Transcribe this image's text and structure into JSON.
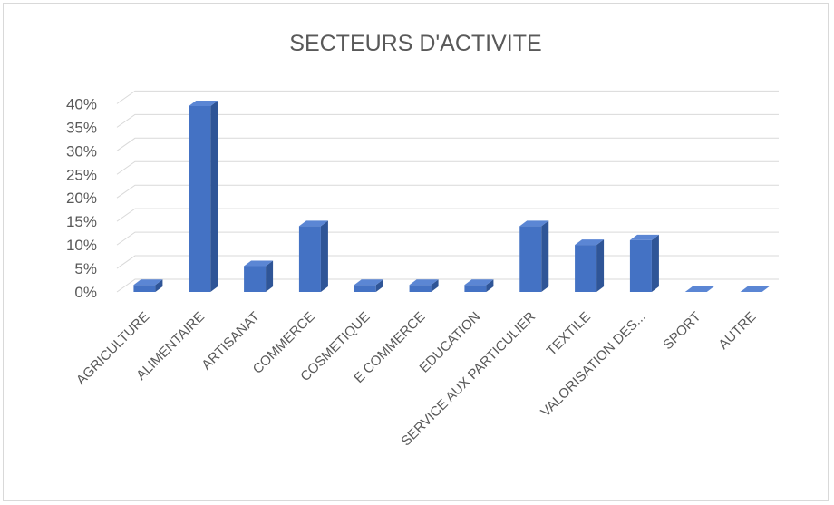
{
  "chart_data": {
    "type": "bar",
    "title": "SECTEURS D'ACTIVITE",
    "categories": [
      "AGRICULTURE",
      "ALIMENTAIRE",
      "ARTISANAT",
      "COMMERCE",
      "COSMETIQUE",
      "E COMMERCE",
      "EDUCATION",
      "SERVICE AUX PARTICULIER",
      "TEXTILE",
      "VALORISATION DES...",
      "SPORT",
      "AUTRE"
    ],
    "values": [
      0.015,
      0.395,
      0.055,
      0.14,
      0.015,
      0.015,
      0.015,
      0.14,
      0.1,
      0.11,
      0.0,
      0.0
    ],
    "ylim": [
      0,
      0.4
    ],
    "yticks": [
      "0%",
      "5%",
      "10%",
      "15%",
      "20%",
      "25%",
      "30%",
      "35%",
      "40%"
    ],
    "grid": true,
    "bar_color": "#4472c4",
    "bar_side_color": "#2f5597",
    "bar_top_color": "#5b86d4"
  }
}
